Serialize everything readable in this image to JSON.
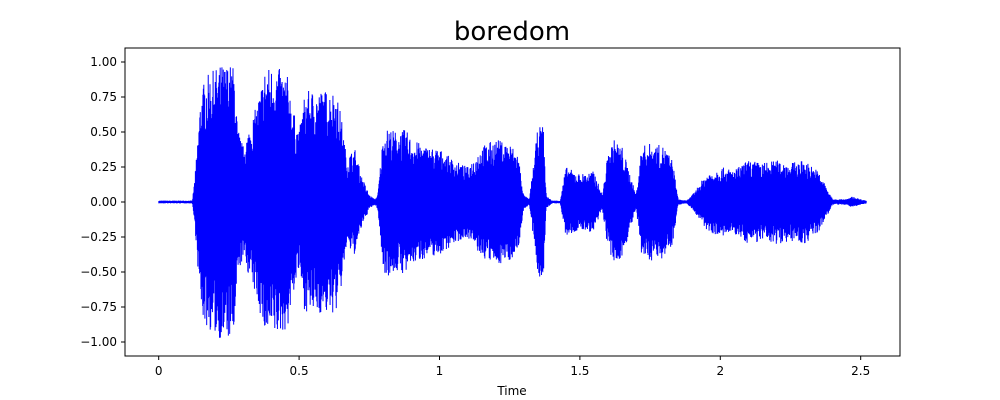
{
  "chart_data": {
    "type": "line",
    "title": "boredom",
    "xlabel": "Time",
    "ylabel": "",
    "xlim": [
      -0.12,
      2.64
    ],
    "ylim": [
      -1.1,
      1.1
    ],
    "x_ticks": [
      0,
      0.5,
      1,
      1.5,
      2,
      2.5
    ],
    "x_tick_labels": [
      "0",
      "0.5",
      "1",
      "1.5",
      "2",
      "2.5"
    ],
    "y_ticks": [
      1.0,
      0.75,
      0.5,
      0.25,
      0.0,
      -0.25,
      -0.5,
      -0.75,
      -1.0
    ],
    "y_tick_labels": [
      "1.00",
      "0.75",
      "0.50",
      "0.25",
      "0.00",
      "−0.25",
      "−0.50",
      "−0.75",
      "−1.00"
    ],
    "grid": false,
    "series": [
      {
        "color": "#0000ff",
        "envelope_time": [
          0,
          0.12,
          0.13,
          0.15,
          0.16,
          0.17,
          0.2,
          0.22,
          0.25,
          0.27,
          0.28,
          0.3,
          0.35,
          0.38,
          0.42,
          0.46,
          0.48,
          0.5,
          0.52,
          0.54,
          0.56,
          0.6,
          0.63,
          0.65,
          0.67,
          0.68,
          0.7,
          0.72,
          0.75,
          0.77,
          0.78,
          0.8,
          0.82,
          0.85,
          0.88,
          0.9,
          0.95,
          1.0,
          1.05,
          1.1,
          1.15,
          1.2,
          1.25,
          1.28,
          1.3,
          1.32,
          1.35,
          1.37,
          1.38,
          1.4,
          1.43,
          1.45,
          1.5,
          1.55,
          1.58,
          1.6,
          1.62,
          1.65,
          1.7,
          1.72,
          1.75,
          1.8,
          1.83,
          1.85,
          1.88,
          1.9,
          1.95,
          2.0,
          2.05,
          2.1,
          2.15,
          2.2,
          2.25,
          2.3,
          2.35,
          2.38,
          2.4,
          2.45,
          2.47,
          2.5,
          2.52
        ],
        "envelope_amp": [
          0.01,
          0.01,
          0.2,
          0.78,
          0.85,
          0.9,
          0.95,
          0.98,
          0.99,
          0.97,
          0.55,
          0.4,
          0.7,
          0.97,
          0.97,
          0.9,
          0.65,
          0.5,
          0.78,
          0.8,
          0.8,
          0.8,
          0.8,
          0.62,
          0.3,
          0.35,
          0.38,
          0.2,
          0.05,
          0.02,
          0.05,
          0.5,
          0.53,
          0.5,
          0.52,
          0.45,
          0.4,
          0.38,
          0.3,
          0.25,
          0.4,
          0.45,
          0.42,
          0.35,
          0.05,
          0.02,
          0.53,
          0.55,
          0.05,
          0.01,
          0.01,
          0.25,
          0.2,
          0.22,
          0.05,
          0.35,
          0.45,
          0.4,
          0.05,
          0.4,
          0.42,
          0.4,
          0.3,
          0.02,
          0.01,
          0.05,
          0.2,
          0.25,
          0.23,
          0.3,
          0.28,
          0.3,
          0.28,
          0.3,
          0.22,
          0.1,
          0.02,
          0.02,
          0.04,
          0.02,
          0.01
        ]
      }
    ]
  }
}
